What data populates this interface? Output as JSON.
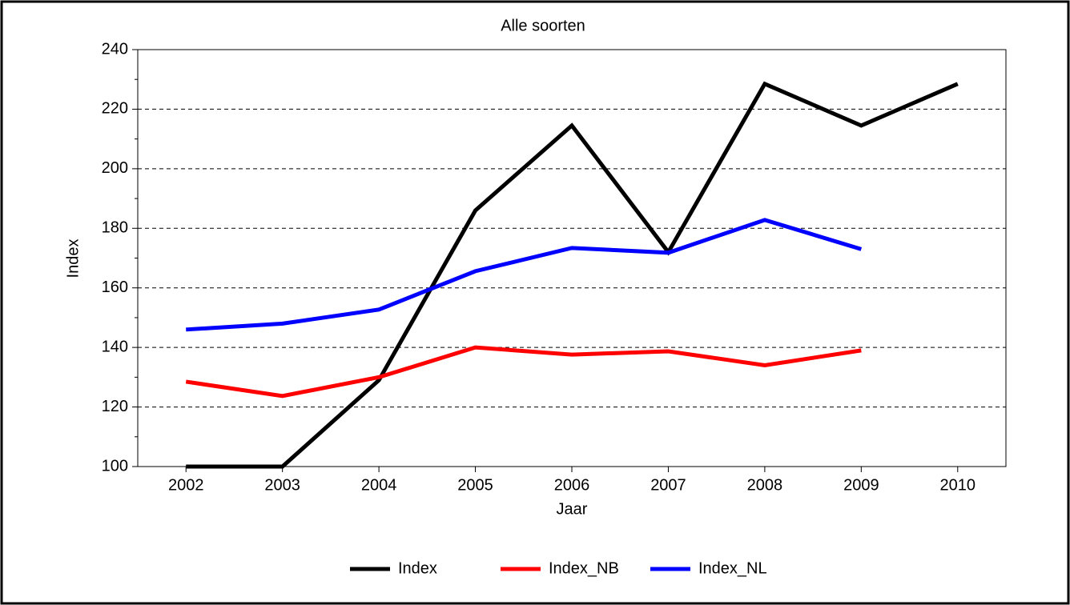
{
  "chart_data": {
    "type": "line",
    "title": "Alle soorten",
    "x_label": "Jaar",
    "y_label": "Index",
    "x": [
      2002,
      2003,
      2004,
      2005,
      2006,
      2007,
      2008,
      2009,
      2010
    ],
    "series": [
      {
        "name": "Index",
        "color": "#000000",
        "values": [
          100,
          100,
          129,
          186,
          214.5,
          172,
          228.5,
          214.5,
          228.5
        ]
      },
      {
        "name": "Index_NB",
        "color": "#ff0000",
        "values": [
          128.5,
          123.7,
          130,
          140,
          137.6,
          138.7,
          134,
          139,
          null
        ]
      },
      {
        "name": "Index_NL",
        "color": "#0000ff",
        "values": [
          146,
          148,
          152.7,
          165.6,
          173.4,
          171.8,
          182.8,
          173,
          null
        ]
      }
    ],
    "xlim": [
      2001.5,
      2010.5
    ],
    "xticks": [
      2002,
      2003,
      2004,
      2005,
      2006,
      2007,
      2008,
      2009,
      2010
    ],
    "ylim": [
      100,
      240
    ],
    "yticks": [
      100,
      120,
      140,
      160,
      180,
      200,
      220,
      240
    ],
    "grid": true,
    "legend": "bottom"
  }
}
